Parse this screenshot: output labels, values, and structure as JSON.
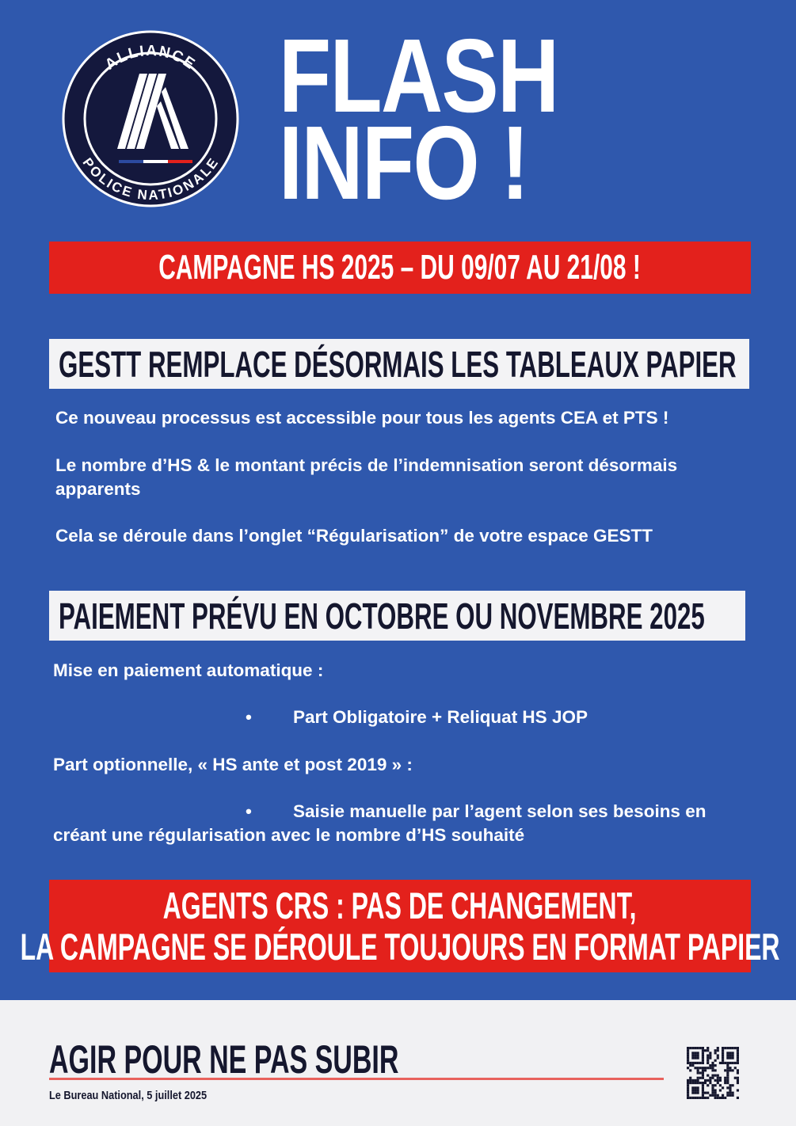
{
  "logo": {
    "top_text": "ALLIANCE",
    "bottom_text": "POLICE NATIONALE",
    "colors": {
      "navy": "#14183d",
      "blue": "#2c4aa0",
      "white": "#ffffff",
      "red": "#e3211c"
    }
  },
  "header": {
    "line1": "FLASH",
    "line2": "INFO !"
  },
  "campaign_banner": "CAMPAGNE HS 2025 – DU 09/07 AU 21/08 !",
  "section1": {
    "title": "GESTT REMPLACE DÉSORMAIS LES TABLEAUX PAPIER",
    "paragraphs": [
      "Ce nouveau processus est accessible pour tous les agents CEA et PTS !",
      "Le nombre d’HS & le montant précis de l’indemnisation seront désormais apparents",
      "Cela se déroule dans l’onglet “Régularisation” de votre espace GESTT"
    ]
  },
  "section2": {
    "title": "PAIEMENT PRÉVU EN OCTOBRE OU NOVEMBRE 2025",
    "intro1": "Mise en paiement automatique :",
    "bullet1": "Part Obligatoire + Reliquat HS JOP",
    "intro2": "Part optionnelle, « HS ante et post 2019 » :",
    "bullet2": "Saisie manuelle par l’agent selon ses besoins en",
    "bullet2_cont": "créant une régularisation avec le nombre d’HS souhaité",
    "bullet_char": "•"
  },
  "crs_banner": {
    "line1": "AGENTS CRS : PAS DE CHANGEMENT,",
    "line2": "LA CAMPAGNE SE DÉROULE TOUJOURS EN FORMAT PAPIER"
  },
  "footer": {
    "slogan": "AGIR POUR NE PAS SUBIR",
    "signature": "Le Bureau National, 5 juillet 2025",
    "qr_icon": "qr-code"
  },
  "colors": {
    "background": "#2f58ad",
    "red": "#e3211c",
    "footer_bg": "#f1f1f3",
    "dark_text": "#15172e"
  }
}
